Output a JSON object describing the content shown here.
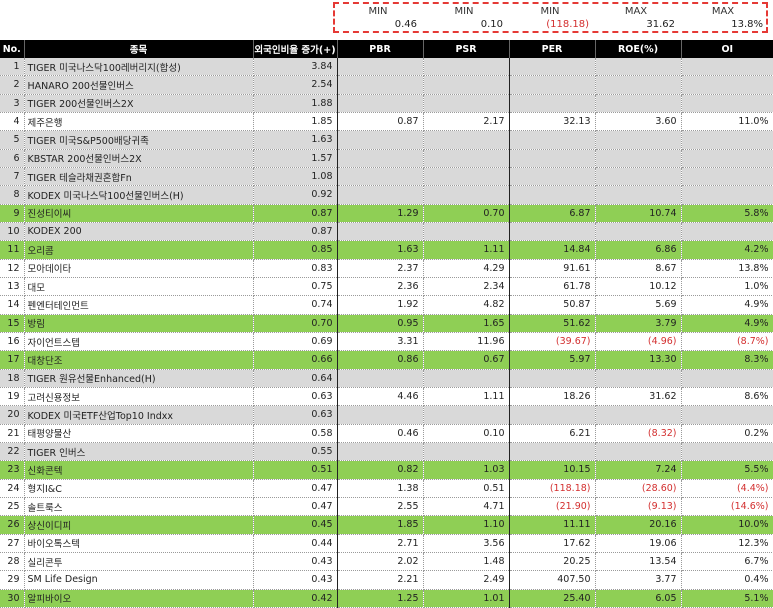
{
  "summary": [
    {
      "label": "MIN",
      "value": "0.46",
      "negative": false
    },
    {
      "label": "MIN",
      "value": "0.10",
      "negative": false
    },
    {
      "label": "MIN",
      "value": "(118.18)",
      "negative": true
    },
    {
      "label": "MAX",
      "value": "31.62",
      "negative": false
    },
    {
      "label": "MAX",
      "value": "13.8%",
      "negative": false
    }
  ],
  "columns": [
    "No.",
    "종목",
    "외국인비율 증가(+)",
    "PBR",
    "PSR",
    "PER",
    "ROE(%)",
    "OI"
  ],
  "colors": {
    "gray": "#d9d9d9",
    "green": "#8fcf55",
    "negative": "#d32f2f",
    "header": "#000000"
  },
  "rows": [
    {
      "no": "1",
      "name": "TIGER 미국나스닥100레버리지(합성)",
      "foreign": "3.84",
      "pbr": "",
      "psr": "",
      "per": "",
      "roe": "",
      "oi": "",
      "style": "gray"
    },
    {
      "no": "2",
      "name": "HANARO 200선물인버스",
      "foreign": "2.54",
      "pbr": "",
      "psr": "",
      "per": "",
      "roe": "",
      "oi": "",
      "style": "gray"
    },
    {
      "no": "3",
      "name": "TIGER 200선물인버스2X",
      "foreign": "1.88",
      "pbr": "",
      "psr": "",
      "per": "",
      "roe": "",
      "oi": "",
      "style": "gray"
    },
    {
      "no": "4",
      "name": "제주은행",
      "foreign": "1.85",
      "pbr": "0.87",
      "psr": "2.17",
      "per": "32.13",
      "roe": "3.60",
      "oi": "11.0%",
      "style": "white"
    },
    {
      "no": "5",
      "name": "TIGER 미국S&P500배당귀족",
      "foreign": "1.63",
      "pbr": "",
      "psr": "",
      "per": "",
      "roe": "",
      "oi": "",
      "style": "gray"
    },
    {
      "no": "6",
      "name": "KBSTAR 200선물인버스2X",
      "foreign": "1.57",
      "pbr": "",
      "psr": "",
      "per": "",
      "roe": "",
      "oi": "",
      "style": "gray"
    },
    {
      "no": "7",
      "name": "TIGER 테슬라채권혼합Fn",
      "foreign": "1.08",
      "pbr": "",
      "psr": "",
      "per": "",
      "roe": "",
      "oi": "",
      "style": "gray"
    },
    {
      "no": "8",
      "name": "KODEX 미국나스닥100선물인버스(H)",
      "foreign": "0.92",
      "pbr": "",
      "psr": "",
      "per": "",
      "roe": "",
      "oi": "",
      "style": "gray"
    },
    {
      "no": "9",
      "name": "진성티이씨",
      "foreign": "0.87",
      "pbr": "1.29",
      "psr": "0.70",
      "per": "6.87",
      "roe": "10.74",
      "oi": "5.8%",
      "style": "green"
    },
    {
      "no": "10",
      "name": "KODEX 200",
      "foreign": "0.87",
      "pbr": "",
      "psr": "",
      "per": "",
      "roe": "",
      "oi": "",
      "style": "gray"
    },
    {
      "no": "11",
      "name": "오리콤",
      "foreign": "0.85",
      "pbr": "1.63",
      "psr": "1.11",
      "per": "14.84",
      "roe": "6.86",
      "oi": "4.2%",
      "style": "green"
    },
    {
      "no": "12",
      "name": "모아데이타",
      "foreign": "0.83",
      "pbr": "2.37",
      "psr": "4.29",
      "per": "91.61",
      "roe": "8.67",
      "oi": "13.8%",
      "style": "white"
    },
    {
      "no": "13",
      "name": "대모",
      "foreign": "0.75",
      "pbr": "2.36",
      "psr": "2.34",
      "per": "61.78",
      "roe": "10.12",
      "oi": "1.0%",
      "style": "white"
    },
    {
      "no": "14",
      "name": "펜엔터테인먼트",
      "foreign": "0.74",
      "pbr": "1.92",
      "psr": "4.82",
      "per": "50.87",
      "roe": "5.69",
      "oi": "4.9%",
      "style": "white"
    },
    {
      "no": "15",
      "name": "방림",
      "foreign": "0.70",
      "pbr": "0.95",
      "psr": "1.65",
      "per": "51.62",
      "roe": "3.79",
      "oi": "4.9%",
      "style": "green"
    },
    {
      "no": "16",
      "name": "자이언트스텝",
      "foreign": "0.69",
      "pbr": "3.31",
      "psr": "11.96",
      "per": "(39.67)",
      "roe": "(4.96)",
      "oi": "(8.7%)",
      "style": "white"
    },
    {
      "no": "17",
      "name": "대창단조",
      "foreign": "0.66",
      "pbr": "0.86",
      "psr": "0.67",
      "per": "5.97",
      "roe": "13.30",
      "oi": "8.3%",
      "style": "green"
    },
    {
      "no": "18",
      "name": "TIGER 원유선물Enhanced(H)",
      "foreign": "0.64",
      "pbr": "",
      "psr": "",
      "per": "",
      "roe": "",
      "oi": "",
      "style": "gray"
    },
    {
      "no": "19",
      "name": "고려신용정보",
      "foreign": "0.63",
      "pbr": "4.46",
      "psr": "1.11",
      "per": "18.26",
      "roe": "31.62",
      "oi": "8.6%",
      "style": "white"
    },
    {
      "no": "20",
      "name": "KODEX 미국ETF산업Top10 Indxx",
      "foreign": "0.63",
      "pbr": "",
      "psr": "",
      "per": "",
      "roe": "",
      "oi": "",
      "style": "gray"
    },
    {
      "no": "21",
      "name": "태평양물산",
      "foreign": "0.58",
      "pbr": "0.46",
      "psr": "0.10",
      "per": "6.21",
      "roe": "(8.32)",
      "oi": "0.2%",
      "style": "white"
    },
    {
      "no": "22",
      "name": "TIGER 인버스",
      "foreign": "0.55",
      "pbr": "",
      "psr": "",
      "per": "",
      "roe": "",
      "oi": "",
      "style": "gray"
    },
    {
      "no": "23",
      "name": "신화콘텍",
      "foreign": "0.51",
      "pbr": "0.82",
      "psr": "1.03",
      "per": "10.15",
      "roe": "7.24",
      "oi": "5.5%",
      "style": "green"
    },
    {
      "no": "24",
      "name": "형지I&C",
      "foreign": "0.47",
      "pbr": "1.38",
      "psr": "0.51",
      "per": "(118.18)",
      "roe": "(28.60)",
      "oi": "(4.4%)",
      "style": "white"
    },
    {
      "no": "25",
      "name": "솔트룩스",
      "foreign": "0.47",
      "pbr": "2.55",
      "psr": "4.71",
      "per": "(21.90)",
      "roe": "(9.13)",
      "oi": "(14.6%)",
      "style": "white"
    },
    {
      "no": "26",
      "name": "상신이디피",
      "foreign": "0.45",
      "pbr": "1.85",
      "psr": "1.10",
      "per": "11.11",
      "roe": "20.16",
      "oi": "10.0%",
      "style": "green"
    },
    {
      "no": "27",
      "name": "바이오톡스텍",
      "foreign": "0.44",
      "pbr": "2.71",
      "psr": "3.56",
      "per": "17.62",
      "roe": "19.06",
      "oi": "12.3%",
      "style": "white"
    },
    {
      "no": "28",
      "name": "실리콘투",
      "foreign": "0.43",
      "pbr": "2.02",
      "psr": "1.48",
      "per": "20.25",
      "roe": "13.54",
      "oi": "6.7%",
      "style": "white"
    },
    {
      "no": "29",
      "name": "SM Life Design",
      "foreign": "0.43",
      "pbr": "2.21",
      "psr": "2.49",
      "per": "407.50",
      "roe": "3.77",
      "oi": "0.4%",
      "style": "white"
    },
    {
      "no": "30",
      "name": "알피바이오",
      "foreign": "0.42",
      "pbr": "1.25",
      "psr": "1.01",
      "per": "25.40",
      "roe": "6.05",
      "oi": "5.1%",
      "style": "green"
    }
  ]
}
